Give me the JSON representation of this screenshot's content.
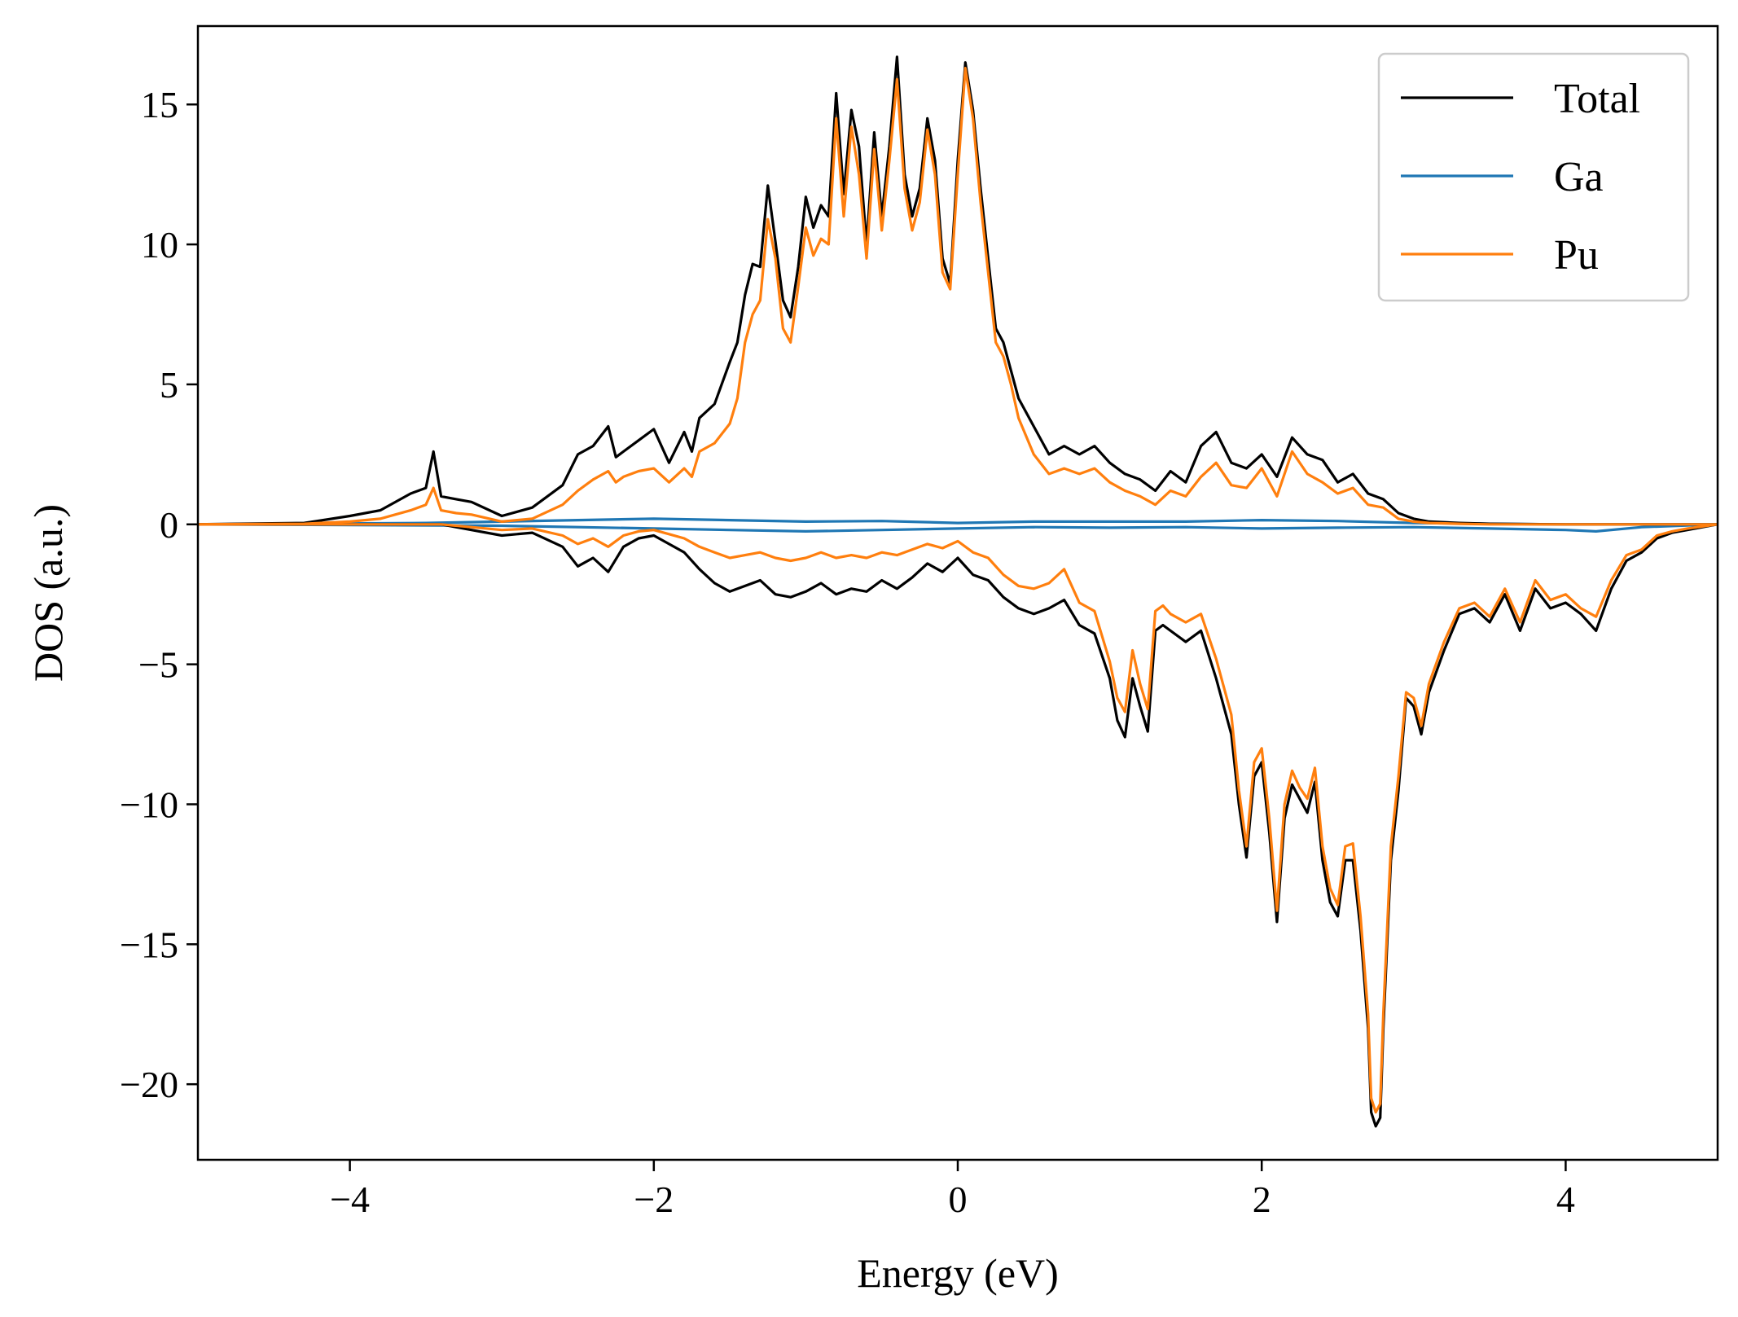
{
  "chart_data": {
    "type": "line",
    "xlabel": "Energy (eV)",
    "ylabel": "DOS (a.u.)",
    "xlim": [
      -5,
      5
    ],
    "ylim": [
      -22.7,
      17.8
    ],
    "x_ticks": [
      -4,
      -2,
      0,
      2,
      4
    ],
    "x_tick_labels": [
      "−4",
      "−2",
      "0",
      "2",
      "4"
    ],
    "y_ticks": [
      15,
      10,
      5,
      0,
      -5,
      -10,
      -15,
      -20
    ],
    "y_tick_labels": [
      "15",
      "10",
      "5",
      "0",
      "−5",
      "−10",
      "−15",
      "−20"
    ],
    "grid": false,
    "legend_position": "top-right",
    "series": [
      {
        "name": "Total",
        "color": "#000000",
        "spin_up": {
          "x": [
            -5,
            -4.3,
            -4.0,
            -3.8,
            -3.6,
            -3.5,
            -3.45,
            -3.4,
            -3.3,
            -3.2,
            -3.0,
            -2.8,
            -2.6,
            -2.5,
            -2.4,
            -2.3,
            -2.25,
            -2.2,
            -2.1,
            -2.0,
            -1.9,
            -1.8,
            -1.75,
            -1.7,
            -1.6,
            -1.5,
            -1.45,
            -1.4,
            -1.35,
            -1.3,
            -1.25,
            -1.2,
            -1.15,
            -1.1,
            -1.05,
            -1.0,
            -0.95,
            -0.9,
            -0.85,
            -0.8,
            -0.75,
            -0.7,
            -0.65,
            -0.6,
            -0.55,
            -0.5,
            -0.45,
            -0.4,
            -0.35,
            -0.3,
            -0.25,
            -0.2,
            -0.15,
            -0.1,
            -0.05,
            0.0,
            0.05,
            0.1,
            0.15,
            0.2,
            0.25,
            0.3,
            0.35,
            0.4,
            0.5,
            0.6,
            0.7,
            0.8,
            0.9,
            1.0,
            1.1,
            1.2,
            1.3,
            1.4,
            1.5,
            1.6,
            1.7,
            1.8,
            1.9,
            2.0,
            2.1,
            2.2,
            2.3,
            2.4,
            2.5,
            2.6,
            2.7,
            2.8,
            2.9,
            3.0,
            3.1,
            3.3,
            3.5,
            4.0,
            4.5,
            5.0
          ],
          "y": [
            0,
            0.05,
            0.3,
            0.5,
            1.1,
            1.3,
            2.6,
            1.0,
            0.9,
            0.8,
            0.3,
            0.6,
            1.4,
            2.5,
            2.8,
            3.5,
            2.4,
            2.6,
            3.0,
            3.4,
            2.2,
            3.3,
            2.6,
            3.8,
            4.3,
            5.8,
            6.5,
            8.2,
            9.3,
            9.2,
            12.1,
            10.1,
            8.0,
            7.4,
            9.2,
            11.7,
            10.6,
            11.4,
            11.0,
            15.4,
            11.8,
            14.8,
            13.5,
            10.0,
            14.0,
            11.0,
            13.5,
            16.7,
            12.5,
            11.0,
            12.0,
            14.5,
            13.0,
            9.5,
            8.6,
            13.0,
            16.5,
            14.8,
            12.0,
            9.5,
            7.0,
            6.5,
            5.5,
            4.5,
            3.5,
            2.5,
            2.8,
            2.5,
            2.8,
            2.2,
            1.8,
            1.6,
            1.2,
            1.9,
            1.5,
            2.8,
            3.3,
            2.2,
            2.0,
            2.5,
            1.7,
            3.1,
            2.5,
            2.3,
            1.5,
            1.8,
            1.1,
            0.9,
            0.4,
            0.2,
            0.1,
            0.05,
            0.02,
            0,
            0,
            0
          ]
        },
        "spin_down": {
          "x": [
            -5,
            -3.4,
            -3.2,
            -3.0,
            -2.8,
            -2.6,
            -2.5,
            -2.4,
            -2.3,
            -2.2,
            -2.1,
            -2.0,
            -1.9,
            -1.8,
            -1.7,
            -1.6,
            -1.5,
            -1.4,
            -1.3,
            -1.2,
            -1.1,
            -1.0,
            -0.9,
            -0.8,
            -0.7,
            -0.6,
            -0.5,
            -0.4,
            -0.3,
            -0.2,
            -0.1,
            0.0,
            0.1,
            0.2,
            0.3,
            0.4,
            0.5,
            0.6,
            0.7,
            0.8,
            0.9,
            1.0,
            1.05,
            1.1,
            1.15,
            1.2,
            1.25,
            1.3,
            1.35,
            1.4,
            1.5,
            1.6,
            1.7,
            1.8,
            1.85,
            1.9,
            1.95,
            2.0,
            2.05,
            2.1,
            2.15,
            2.2,
            2.25,
            2.3,
            2.35,
            2.4,
            2.45,
            2.5,
            2.55,
            2.6,
            2.65,
            2.7,
            2.72,
            2.75,
            2.78,
            2.8,
            2.85,
            2.9,
            2.95,
            3.0,
            3.05,
            3.1,
            3.2,
            3.3,
            3.4,
            3.5,
            3.6,
            3.7,
            3.8,
            3.9,
            4.0,
            4.1,
            4.2,
            4.3,
            4.4,
            4.5,
            4.6,
            4.7,
            4.8,
            5.0
          ],
          "y": [
            0,
            0,
            -0.2,
            -0.4,
            -0.3,
            -0.8,
            -1.5,
            -1.2,
            -1.7,
            -0.8,
            -0.5,
            -0.4,
            -0.7,
            -1.0,
            -1.6,
            -2.1,
            -2.4,
            -2.2,
            -2.0,
            -2.5,
            -2.6,
            -2.4,
            -2.1,
            -2.5,
            -2.3,
            -2.4,
            -2.0,
            -2.3,
            -1.9,
            -1.4,
            -1.7,
            -1.2,
            -1.8,
            -2.0,
            -2.6,
            -3.0,
            -3.2,
            -3.0,
            -2.7,
            -3.6,
            -3.9,
            -5.5,
            -7.0,
            -7.6,
            -5.5,
            -6.5,
            -7.4,
            -3.8,
            -3.6,
            -3.8,
            -4.2,
            -3.8,
            -5.5,
            -7.5,
            -10.0,
            -11.9,
            -9.0,
            -8.5,
            -11.0,
            -14.2,
            -10.5,
            -9.3,
            -9.8,
            -10.3,
            -9.2,
            -12.0,
            -13.5,
            -14.0,
            -12.0,
            -12.0,
            -14.5,
            -18.0,
            -21.0,
            -21.5,
            -21.2,
            -18.0,
            -12.0,
            -9.5,
            -6.2,
            -6.5,
            -7.5,
            -6.0,
            -4.5,
            -3.2,
            -3.0,
            -3.5,
            -2.5,
            -3.8,
            -2.3,
            -3.0,
            -2.8,
            -3.2,
            -3.8,
            -2.3,
            -1.3,
            -1.0,
            -0.5,
            -0.3,
            -0.2,
            0
          ]
        }
      },
      {
        "name": "Ga",
        "color": "#1f77b4",
        "spin_up": {
          "x": [
            -5,
            -3.5,
            -3.0,
            -2.5,
            -2.0,
            -1.5,
            -1.0,
            -0.5,
            0.0,
            0.5,
            1.0,
            1.5,
            2.0,
            2.5,
            3.0,
            3.5,
            4.0,
            4.5,
            5.0
          ],
          "y": [
            0,
            0.05,
            0.1,
            0.15,
            0.2,
            0.15,
            0.1,
            0.12,
            0.05,
            0.1,
            0.1,
            0.1,
            0.15,
            0.12,
            0.05,
            0.02,
            0,
            0,
            0
          ]
        },
        "spin_down": {
          "x": [
            -5,
            -3.0,
            -2.5,
            -2.0,
            -1.5,
            -1.0,
            -0.5,
            0.0,
            0.5,
            1.0,
            1.5,
            2.0,
            2.5,
            3.0,
            3.5,
            4.0,
            4.2,
            4.5,
            5.0
          ],
          "y": [
            0,
            -0.05,
            -0.1,
            -0.15,
            -0.2,
            -0.25,
            -0.2,
            -0.15,
            -0.1,
            -0.12,
            -0.1,
            -0.15,
            -0.12,
            -0.1,
            -0.15,
            -0.2,
            -0.25,
            -0.1,
            0
          ]
        }
      },
      {
        "name": "Pu",
        "color": "#ff7f0e",
        "spin_up": {
          "x": [
            -5,
            -4.3,
            -4.0,
            -3.8,
            -3.6,
            -3.5,
            -3.45,
            -3.4,
            -3.3,
            -3.2,
            -3.0,
            -2.8,
            -2.6,
            -2.5,
            -2.4,
            -2.3,
            -2.25,
            -2.2,
            -2.1,
            -2.0,
            -1.9,
            -1.8,
            -1.75,
            -1.7,
            -1.6,
            -1.5,
            -1.45,
            -1.4,
            -1.35,
            -1.3,
            -1.25,
            -1.2,
            -1.15,
            -1.1,
            -1.05,
            -1.0,
            -0.95,
            -0.9,
            -0.85,
            -0.8,
            -0.75,
            -0.7,
            -0.65,
            -0.6,
            -0.55,
            -0.5,
            -0.45,
            -0.4,
            -0.35,
            -0.3,
            -0.25,
            -0.2,
            -0.15,
            -0.1,
            -0.05,
            0.0,
            0.05,
            0.1,
            0.15,
            0.2,
            0.25,
            0.3,
            0.35,
            0.4,
            0.5,
            0.6,
            0.7,
            0.8,
            0.9,
            1.0,
            1.1,
            1.2,
            1.3,
            1.4,
            1.5,
            1.6,
            1.7,
            1.8,
            1.9,
            2.0,
            2.1,
            2.2,
            2.3,
            2.4,
            2.5,
            2.6,
            2.7,
            2.8,
            2.9,
            3.0,
            3.1,
            3.3,
            3.5,
            4.0,
            4.5,
            5.0
          ],
          "y": [
            0,
            0.02,
            0.1,
            0.2,
            0.5,
            0.7,
            1.3,
            0.5,
            0.4,
            0.35,
            0.1,
            0.2,
            0.7,
            1.2,
            1.6,
            1.9,
            1.5,
            1.7,
            1.9,
            2.0,
            1.5,
            2.0,
            1.7,
            2.6,
            2.9,
            3.6,
            4.5,
            6.5,
            7.5,
            8.0,
            10.9,
            9.5,
            7.0,
            6.5,
            8.5,
            10.6,
            9.6,
            10.2,
            10.0,
            14.5,
            11.0,
            14.2,
            12.5,
            9.5,
            13.4,
            10.5,
            13.0,
            15.9,
            12.0,
            10.5,
            11.5,
            14.1,
            12.5,
            9.0,
            8.4,
            12.5,
            16.3,
            14.5,
            11.5,
            9.0,
            6.5,
            6.0,
            5.0,
            3.8,
            2.5,
            1.8,
            2.0,
            1.8,
            2.0,
            1.5,
            1.2,
            1.0,
            0.7,
            1.2,
            1.0,
            1.7,
            2.2,
            1.4,
            1.3,
            2.0,
            1.0,
            2.6,
            1.8,
            1.5,
            1.1,
            1.3,
            0.7,
            0.6,
            0.2,
            0.1,
            0.05,
            0.02,
            0,
            0,
            0,
            0
          ]
        },
        "spin_down": {
          "x": [
            -5,
            -3.4,
            -3.2,
            -3.0,
            -2.8,
            -2.6,
            -2.5,
            -2.4,
            -2.3,
            -2.2,
            -2.1,
            -2.0,
            -1.9,
            -1.8,
            -1.7,
            -1.6,
            -1.5,
            -1.4,
            -1.3,
            -1.2,
            -1.1,
            -1.0,
            -0.9,
            -0.8,
            -0.7,
            -0.6,
            -0.5,
            -0.4,
            -0.3,
            -0.2,
            -0.1,
            0.0,
            0.1,
            0.2,
            0.3,
            0.4,
            0.5,
            0.6,
            0.7,
            0.8,
            0.9,
            1.0,
            1.05,
            1.1,
            1.15,
            1.2,
            1.25,
            1.3,
            1.35,
            1.4,
            1.5,
            1.6,
            1.7,
            1.8,
            1.85,
            1.9,
            1.95,
            2.0,
            2.05,
            2.1,
            2.15,
            2.2,
            2.25,
            2.3,
            2.35,
            2.4,
            2.45,
            2.5,
            2.55,
            2.6,
            2.65,
            2.7,
            2.72,
            2.75,
            2.78,
            2.8,
            2.85,
            2.9,
            2.95,
            3.0,
            3.05,
            3.1,
            3.2,
            3.3,
            3.4,
            3.5,
            3.6,
            3.7,
            3.8,
            3.9,
            4.0,
            4.1,
            4.2,
            4.3,
            4.4,
            4.5,
            4.6,
            4.7,
            4.8,
            5.0
          ],
          "y": [
            0,
            0,
            -0.1,
            -0.2,
            -0.15,
            -0.4,
            -0.7,
            -0.5,
            -0.8,
            -0.4,
            -0.25,
            -0.2,
            -0.35,
            -0.5,
            -0.8,
            -1.0,
            -1.2,
            -1.1,
            -1.0,
            -1.2,
            -1.3,
            -1.2,
            -1.0,
            -1.2,
            -1.1,
            -1.2,
            -1.0,
            -1.1,
            -0.9,
            -0.7,
            -0.85,
            -0.6,
            -1.0,
            -1.2,
            -1.8,
            -2.2,
            -2.3,
            -2.1,
            -1.6,
            -2.8,
            -3.1,
            -4.9,
            -6.2,
            -6.7,
            -4.5,
            -5.7,
            -6.6,
            -3.1,
            -2.9,
            -3.2,
            -3.5,
            -3.2,
            -4.8,
            -6.8,
            -9.5,
            -11.5,
            -8.5,
            -8.0,
            -10.5,
            -13.8,
            -10.0,
            -8.8,
            -9.4,
            -9.8,
            -8.7,
            -11.5,
            -13.0,
            -13.6,
            -11.5,
            -11.4,
            -14.0,
            -17.5,
            -20.5,
            -21.0,
            -20.7,
            -17.5,
            -11.5,
            -9.0,
            -6.0,
            -6.2,
            -7.2,
            -5.7,
            -4.2,
            -3.0,
            -2.8,
            -3.3,
            -2.3,
            -3.5,
            -2.0,
            -2.7,
            -2.5,
            -3.0,
            -3.3,
            -2.0,
            -1.1,
            -0.9,
            -0.4,
            -0.25,
            -0.15,
            0
          ]
        }
      }
    ]
  }
}
